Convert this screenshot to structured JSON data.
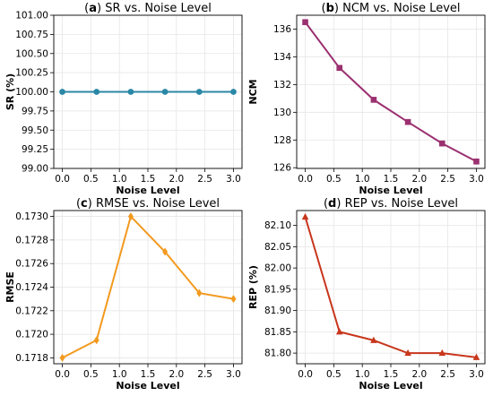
{
  "chart_data": [
    {
      "panel": "(a)",
      "type": "line",
      "title_letter": "a",
      "title": "SR vs. Noise Level",
      "xlabel": "Noise Level",
      "ylabel": "SR (%)",
      "x": [
        0.0,
        0.6,
        1.2,
        1.8,
        2.4,
        3.0
      ],
      "values": [
        100.0,
        100.0,
        100.0,
        100.0,
        100.0,
        100.0
      ],
      "xlim": [
        -0.15,
        3.15
      ],
      "ylim": [
        99.0,
        101.0
      ],
      "xticks": [
        "0.0",
        "0.5",
        "1.0",
        "1.5",
        "2.0",
        "2.5",
        "3.0"
      ],
      "yticks": [
        "99.00",
        "99.25",
        "99.50",
        "99.75",
        "100.00",
        "100.25",
        "100.50",
        "100.75",
        "101.00"
      ],
      "marker": "circle",
      "color": "#2a87a6",
      "grid": true
    },
    {
      "panel": "(b)",
      "type": "line",
      "title_letter": "b",
      "title": "NCM vs. Noise Level",
      "xlabel": "Noise Level",
      "ylabel": "NCM",
      "x": [
        0.0,
        0.6,
        1.2,
        1.8,
        2.4,
        3.0
      ],
      "values": [
        136.5,
        133.2,
        130.9,
        129.3,
        127.75,
        126.45
      ],
      "xlim": [
        -0.15,
        3.15
      ],
      "ylim": [
        125.95,
        137.0
      ],
      "xticks": [
        "0.0",
        "0.5",
        "1.0",
        "1.5",
        "2.0",
        "2.5",
        "3.0"
      ],
      "yticks": [
        "126",
        "128",
        "130",
        "132",
        "134",
        "136"
      ],
      "marker": "square",
      "color": "#9b3070",
      "grid": true
    },
    {
      "panel": "(c)",
      "type": "line",
      "title_letter": "c",
      "title": "RMSE vs. Noise Level",
      "xlabel": "Noise Level",
      "ylabel": "RMSE",
      "x": [
        0.0,
        0.6,
        1.2,
        1.8,
        2.4,
        3.0
      ],
      "values": [
        0.1718,
        0.17195,
        0.173,
        0.1727,
        0.17235,
        0.1723
      ],
      "xlim": [
        -0.15,
        3.15
      ],
      "ylim": [
        0.17175,
        0.17305
      ],
      "xticks": [
        "0.0",
        "0.5",
        "1.0",
        "1.5",
        "2.0",
        "2.5",
        "3.0"
      ],
      "yticks": [
        "0.1718",
        "0.1720",
        "0.1722",
        "0.1724",
        "0.1726",
        "0.1728",
        "0.1730"
      ],
      "marker": "diamond",
      "color": "#f29a1f",
      "grid": true
    },
    {
      "panel": "(d)",
      "type": "line",
      "title_letter": "d",
      "title": "REP vs. Noise Level",
      "xlabel": "Noise Level",
      "ylabel": "REP (%)",
      "x": [
        0.0,
        0.6,
        1.2,
        1.8,
        2.4,
        3.0
      ],
      "values": [
        82.12,
        81.85,
        81.83,
        81.8,
        81.8,
        81.79
      ],
      "xlim": [
        -0.15,
        3.15
      ],
      "ylim": [
        81.775,
        82.135
      ],
      "xticks": [
        "0.0",
        "0.5",
        "1.0",
        "1.5",
        "2.0",
        "2.5",
        "3.0"
      ],
      "yticks": [
        "81.80",
        "81.85",
        "81.90",
        "81.95",
        "82.00",
        "82.05",
        "82.10"
      ],
      "marker": "triangle",
      "color": "#c8361c",
      "grid": true
    }
  ]
}
